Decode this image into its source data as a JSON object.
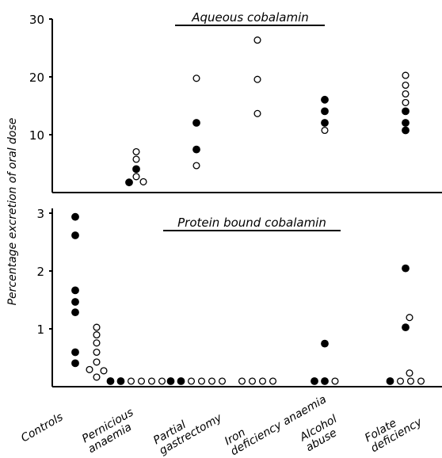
{
  "y_axis_label": "Percentage excretion of oral dose",
  "categories": [
    "Controls",
    "Pernicious anaemia",
    "Partial gastrectomy",
    "Iron deficiency anaemia",
    "Alcohol abuse",
    "Folate deficiency"
  ],
  "legend_note": "filled and open circles denote two groups of subjects (no legend printed)",
  "chart_data": [
    {
      "type": "scatter",
      "title": "Aqueous cobalamin",
      "categories": [
        "Controls",
        "Pernicious anaemia",
        "Partial gastrectomy",
        "Iron deficiency anaemia",
        "Alcohol abuse",
        "Folate deficiency"
      ],
      "ylabel": "Percentage excretion of oral dose",
      "ylim": [
        0,
        30
      ],
      "yticks": [
        10,
        20,
        30
      ],
      "series": [
        {
          "marker": "filled",
          "points": [
            {
              "category": "Pernicious anaemia",
              "y": 0.8
            },
            {
              "category": "Pernicious anaemia",
              "y": 3.1
            },
            {
              "category": "Partial gastrectomy",
              "y": 6.5
            },
            {
              "category": "Partial gastrectomy",
              "y": 11.1
            },
            {
              "category": "Alcohol abuse",
              "y": 11.1
            },
            {
              "category": "Alcohol abuse",
              "y": 13.1
            },
            {
              "category": "Alcohol abuse",
              "y": 15.1
            },
            {
              "category": "Folate deficiency",
              "y": 9.8
            },
            {
              "category": "Folate deficiency",
              "y": 11.1
            },
            {
              "category": "Folate deficiency",
              "y": 13.1
            }
          ]
        },
        {
          "marker": "open",
          "points": [
            {
              "category": "Pernicious anaemia",
              "y": 0.9
            },
            {
              "category": "Pernicious anaemia",
              "y": 1.8
            },
            {
              "category": "Pernicious anaemia",
              "y": 4.8
            },
            {
              "category": "Pernicious anaemia",
              "y": 6.1
            },
            {
              "category": "Partial gastrectomy",
              "y": 3.7
            },
            {
              "category": "Partial gastrectomy",
              "y": 18.8
            },
            {
              "category": "Iron deficiency anaemia",
              "y": 12.7
            },
            {
              "category": "Iron deficiency anaemia",
              "y": 18.6
            },
            {
              "category": "Iron deficiency anaemia",
              "y": 25.4
            },
            {
              "category": "Alcohol abuse",
              "y": 9.8
            },
            {
              "category": "Folate deficiency",
              "y": 14.6
            },
            {
              "category": "Folate deficiency",
              "y": 16.1
            },
            {
              "category": "Folate deficiency",
              "y": 17.6
            },
            {
              "category": "Folate deficiency",
              "y": 19.3
            }
          ]
        }
      ]
    },
    {
      "type": "scatter",
      "title": "Protein bound cobalamin",
      "categories": [
        "Controls",
        "Pernicious anaemia",
        "Partial gastrectomy",
        "Iron deficiency anaemia",
        "Alcohol abuse",
        "Folate deficiency"
      ],
      "ylabel": "Percentage excretion of oral dose",
      "ylim": [
        0,
        3
      ],
      "yticks": [
        1,
        2,
        3
      ],
      "series": [
        {
          "marker": "filled",
          "points": [
            {
              "category": "Controls",
              "y": 2.84
            },
            {
              "category": "Controls",
              "y": 2.52
            },
            {
              "category": "Controls",
              "y": 1.57
            },
            {
              "category": "Controls",
              "y": 1.37
            },
            {
              "category": "Controls",
              "y": 1.19
            },
            {
              "category": "Controls",
              "y": 0.5
            },
            {
              "category": "Controls",
              "y": 0.31
            },
            {
              "category": "Pernicious anaemia",
              "y": 0
            },
            {
              "category": "Pernicious anaemia",
              "y": 0
            },
            {
              "category": "Partial gastrectomy",
              "y": 0
            },
            {
              "category": "Partial gastrectomy",
              "y": 0
            },
            {
              "category": "Alcohol abuse",
              "y": 0.65
            },
            {
              "category": "Alcohol abuse",
              "y": 0
            },
            {
              "category": "Alcohol abuse",
              "y": 0
            },
            {
              "category": "Folate deficiency",
              "y": 1.95
            },
            {
              "category": "Folate deficiency",
              "y": 0.93
            },
            {
              "category": "Folate deficiency",
              "y": 0
            }
          ]
        },
        {
          "marker": "open",
          "points": [
            {
              "category": "Controls",
              "y": 0.93
            },
            {
              "category": "Controls",
              "y": 0.8
            },
            {
              "category": "Controls",
              "y": 0.66
            },
            {
              "category": "Controls",
              "y": 0.5
            },
            {
              "category": "Controls",
              "y": 0.33
            },
            {
              "category": "Controls",
              "y": 0.2
            },
            {
              "category": "Controls",
              "y": 0.18
            },
            {
              "category": "Controls",
              "y": 0.07
            },
            {
              "category": "Pernicious anaemia",
              "y": 0
            },
            {
              "category": "Pernicious anaemia",
              "y": 0
            },
            {
              "category": "Pernicious anaemia",
              "y": 0
            },
            {
              "category": "Pernicious anaemia",
              "y": 0
            },
            {
              "category": "Partial gastrectomy",
              "y": 0
            },
            {
              "category": "Partial gastrectomy",
              "y": 0
            },
            {
              "category": "Partial gastrectomy",
              "y": 0
            },
            {
              "category": "Partial gastrectomy",
              "y": 0
            },
            {
              "category": "Iron deficiency anaemia",
              "y": 0
            },
            {
              "category": "Iron deficiency anaemia",
              "y": 0
            },
            {
              "category": "Iron deficiency anaemia",
              "y": 0
            },
            {
              "category": "Iron deficiency anaemia",
              "y": 0
            },
            {
              "category": "Alcohol abuse",
              "y": 0
            },
            {
              "category": "Folate deficiency",
              "y": 1.1
            },
            {
              "category": "Folate deficiency",
              "y": 0.14
            },
            {
              "category": "Folate deficiency",
              "y": 0
            },
            {
              "category": "Folate deficiency",
              "y": 0
            },
            {
              "category": "Folate deficiency",
              "y": 0
            }
          ]
        }
      ]
    }
  ]
}
